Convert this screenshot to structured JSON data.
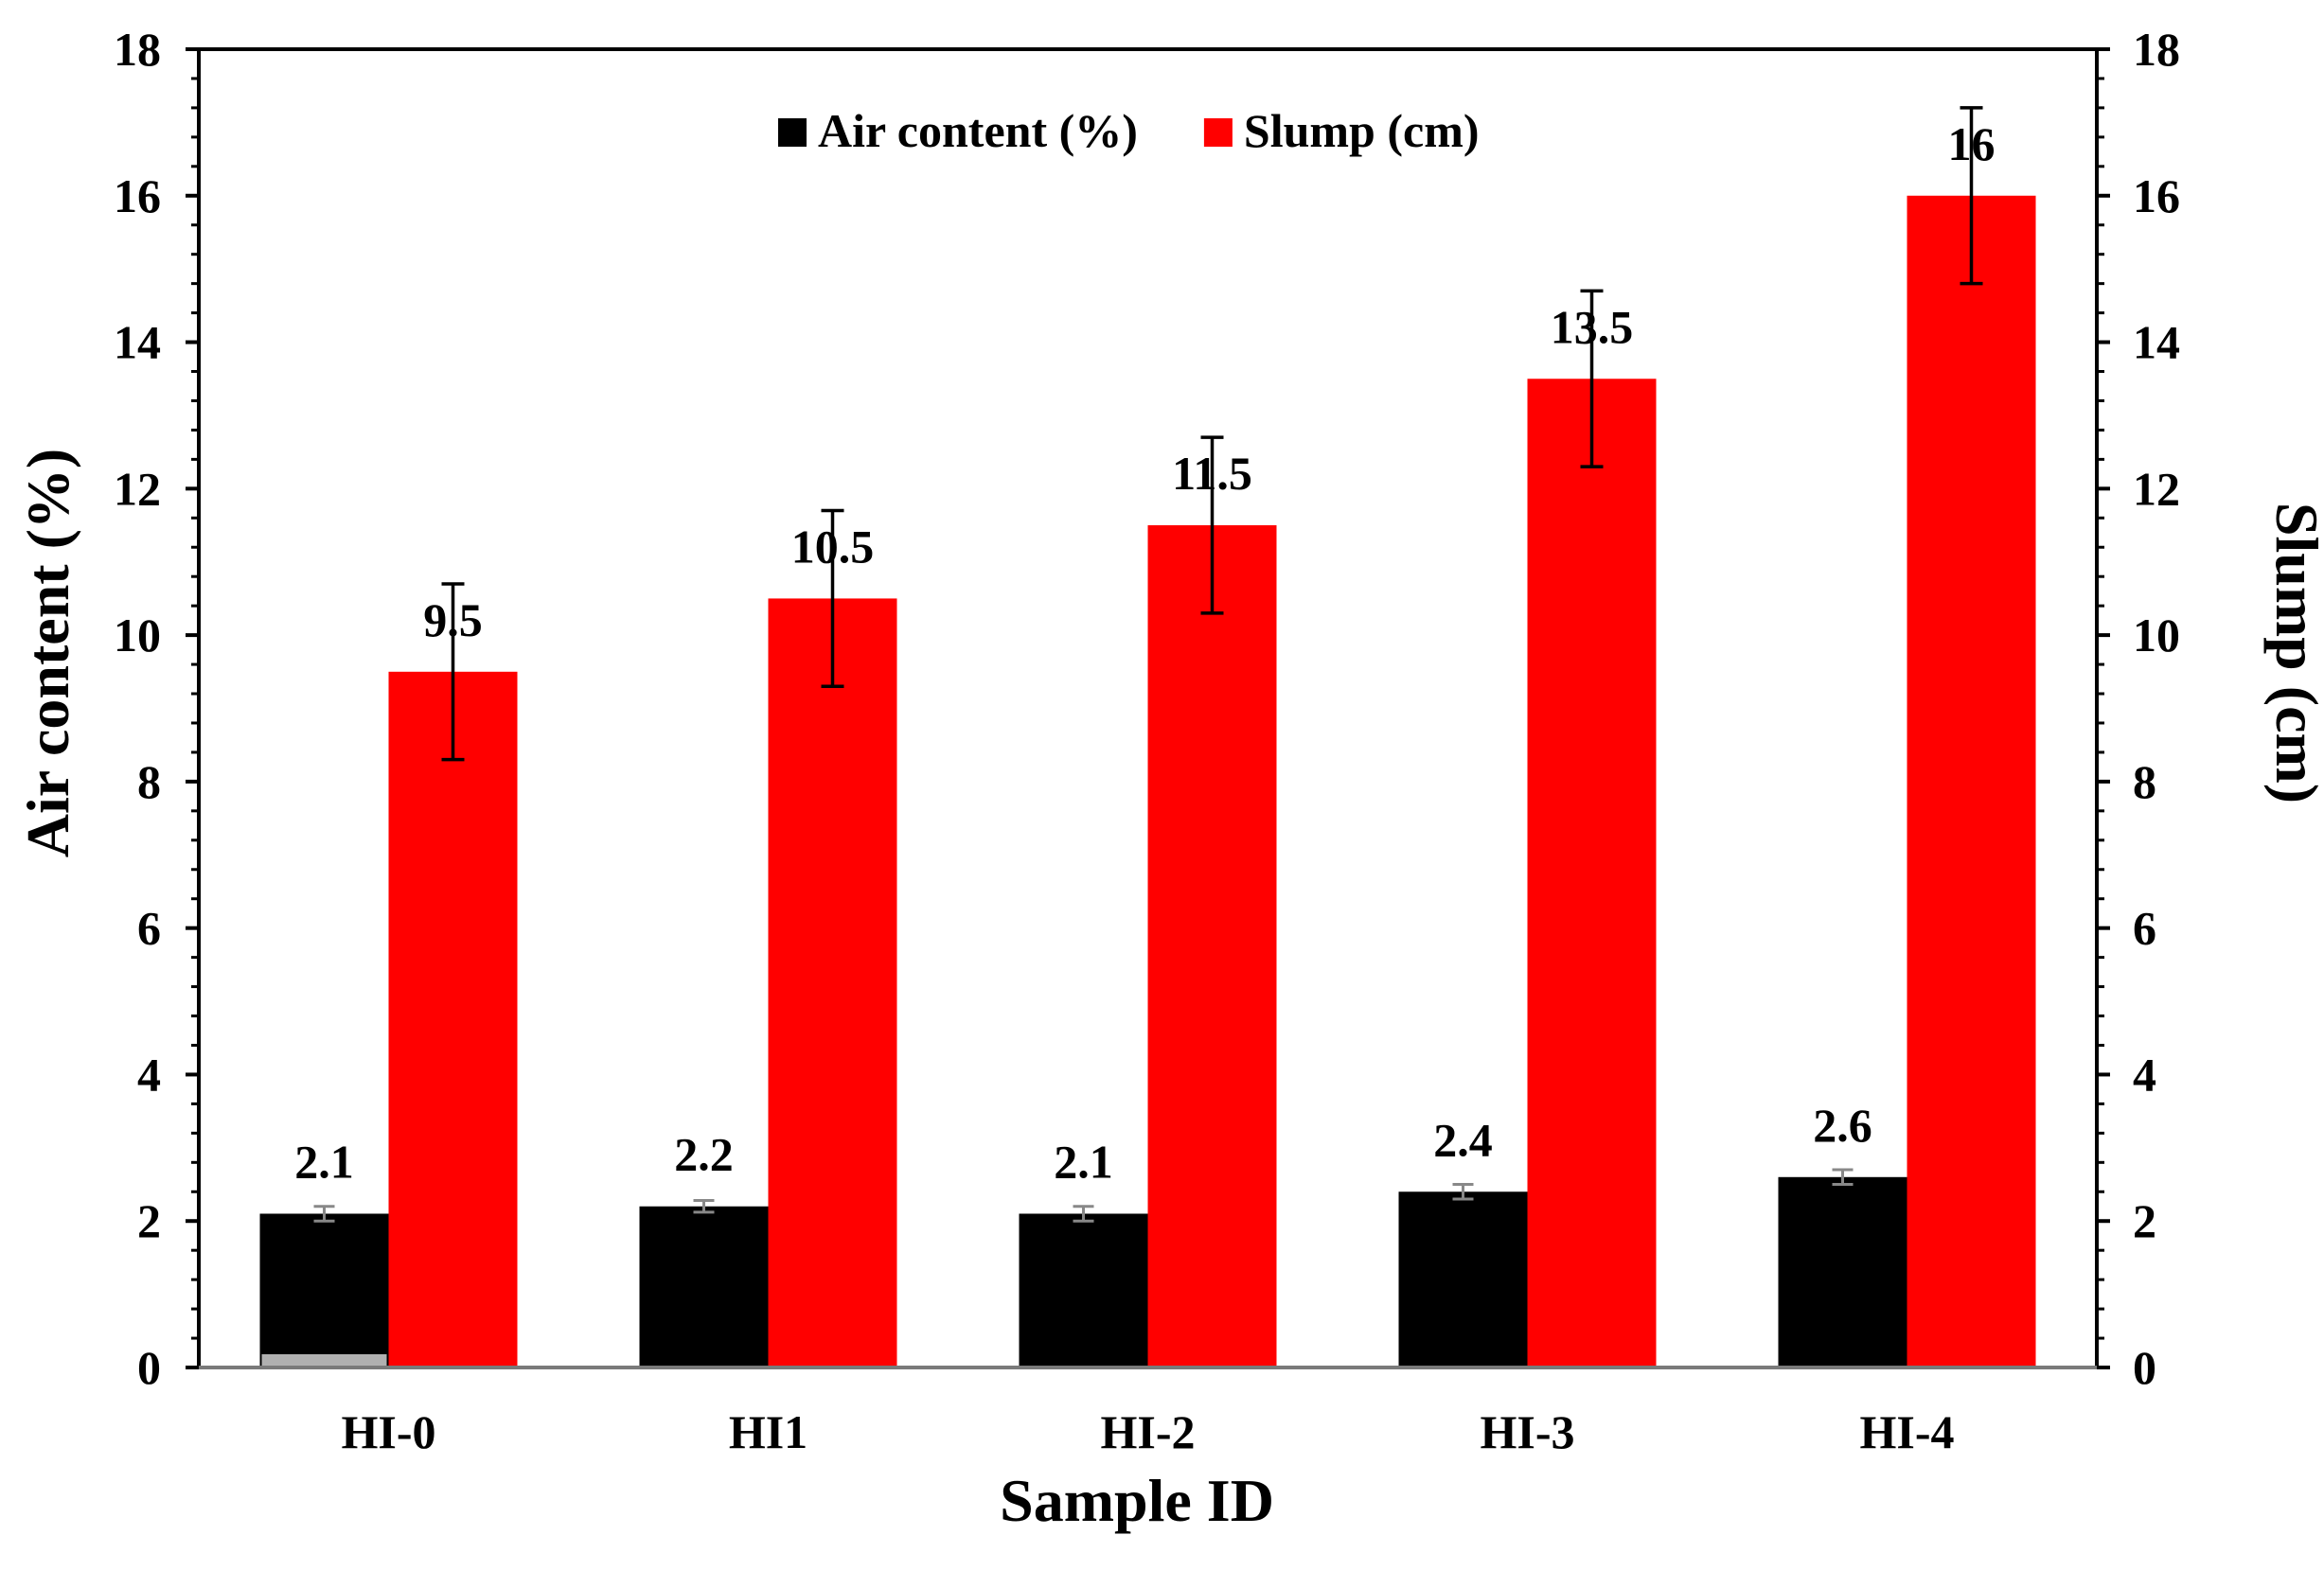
{
  "chart_data": {
    "type": "bar",
    "title": "",
    "xlabel": "Sample ID",
    "ylabel": "Air content (%)",
    "y2label": "Slump (cm)",
    "categories": [
      "HI-0",
      "HI1",
      "HI-2",
      "HI-3",
      "HI-4"
    ],
    "ylim": [
      0,
      18
    ],
    "y2lim": [
      0,
      18
    ],
    "yticks": [
      "0",
      "2",
      "4",
      "6",
      "8",
      "10",
      "12",
      "14",
      "16",
      "18"
    ],
    "y2ticks": [
      "0",
      "2",
      "4",
      "6",
      "8",
      "10",
      "12",
      "14",
      "16",
      "18"
    ],
    "grid": false,
    "legend_position": "top-center",
    "series": [
      {
        "name": "Air content (%)",
        "color": "#000000",
        "axis": "left",
        "values": [
          2.1,
          2.2,
          2.1,
          2.4,
          2.6
        ],
        "value_labels": [
          "2.1",
          "2.2",
          "2.1",
          "2.4",
          "2.6"
        ],
        "error": [
          0.1,
          0.08,
          0.1,
          0.1,
          0.1
        ],
        "error_color": "#888888"
      },
      {
        "name": "Slump (cm)",
        "color": "#ff0000",
        "axis": "right",
        "values": [
          9.5,
          10.5,
          11.5,
          13.5,
          16
        ],
        "value_labels": [
          "9.5",
          "10.5",
          "11.5",
          "13.5",
          "16"
        ],
        "error": [
          1.2,
          1.2,
          1.2,
          1.2,
          1.2
        ],
        "error_color": "#000000"
      }
    ]
  }
}
